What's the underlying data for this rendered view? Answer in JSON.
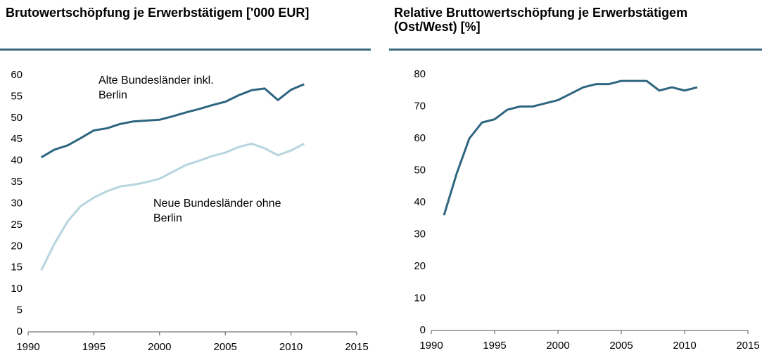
{
  "chart_data": [
    {
      "type": "line",
      "title": "Brutowertschöpfung je Erwerbstätigem ['000 EUR]",
      "x": [
        1991,
        1992,
        1993,
        1994,
        1995,
        1996,
        1997,
        1998,
        1999,
        2000,
        2001,
        2002,
        2003,
        2004,
        2005,
        2006,
        2007,
        2008,
        2009,
        2010,
        2011
      ],
      "series": [
        {
          "name": "Alte Bundesländer inkl. Berlin",
          "color": "#2e6680",
          "values": [
            40.8,
            42.6,
            43.6,
            45.3,
            47.1,
            47.6,
            48.6,
            49.2,
            49.4,
            49.6,
            50.4,
            51.3,
            52.1,
            53.0,
            53.8,
            55.3,
            56.5,
            56.9,
            54.2,
            56.6,
            57.9
          ]
        },
        {
          "name": "Neue Bundesländer ohne Berlin",
          "color": "#b7d5df",
          "values": [
            14.4,
            20.6,
            25.8,
            29.4,
            31.4,
            32.9,
            34.0,
            34.4,
            35.0,
            35.8,
            37.4,
            39.0,
            40.0,
            41.1,
            41.9,
            43.2,
            44.0,
            42.9,
            41.3,
            42.4,
            44.0
          ]
        }
      ],
      "xlim": [
        1990,
        2015
      ],
      "xticks": [
        1990,
        1995,
        2000,
        2005,
        2010,
        2015
      ],
      "ylim": [
        0,
        60
      ],
      "yticks": [
        0,
        5,
        10,
        15,
        20,
        25,
        30,
        35,
        40,
        45,
        50,
        55,
        60
      ]
    },
    {
      "type": "line",
      "title": "Relative Bruttowertschöpfung je Erwerbstätigem (Ost/West) [%]",
      "x": [
        1991,
        1992,
        1993,
        1994,
        1995,
        1996,
        1997,
        1998,
        1999,
        2000,
        2001,
        2002,
        2003,
        2004,
        2005,
        2006,
        2007,
        2008,
        2009,
        2010,
        2011
      ],
      "series": [
        {
          "color": "#2e6680",
          "values": [
            36,
            49,
            60,
            65,
            66,
            69,
            70,
            70,
            71,
            72,
            74,
            76,
            77,
            77,
            78,
            78,
            78,
            75,
            76,
            75,
            76
          ]
        }
      ],
      "xlim": [
        1990,
        2015
      ],
      "xticks": [
        1990,
        1995,
        2000,
        2005,
        2010,
        2015
      ],
      "ylim": [
        0,
        80
      ],
      "yticks": [
        0,
        10,
        20,
        30,
        40,
        50,
        60,
        70,
        80
      ]
    }
  ]
}
